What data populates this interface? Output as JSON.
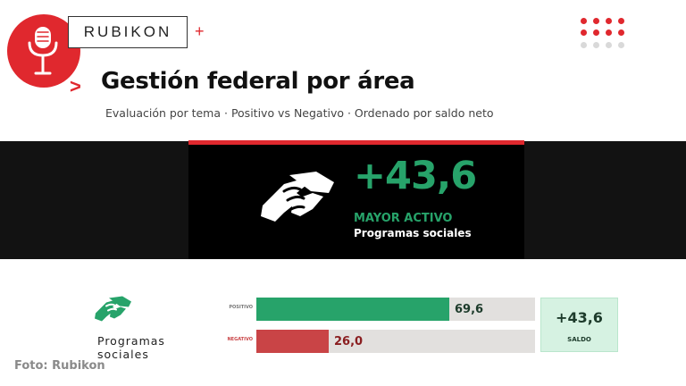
{
  "brand": {
    "name": "RUBIKON",
    "plus": "+",
    "logo_icon": "microphone-icon",
    "accent_color": "#e0282e"
  },
  "header": {
    "chevron": ">",
    "title": "Gestión federal por área",
    "subtitle": "Evaluación por tema · Positivo vs Negativo · Ordenado por saldo neto"
  },
  "hero": {
    "icon": "handshake-icon",
    "value": "+43,6",
    "label": "MAYOR ACTIVO",
    "category": "Programas sociales",
    "value_color": "#27a36a"
  },
  "rows": [
    {
      "category": "Programas sociales",
      "icon": "handshake-icon",
      "positive": {
        "tag": "POSITIVO",
        "value": 69.6,
        "display": "69,6",
        "color": "#27a36a"
      },
      "negative": {
        "tag": "NEGATIVO",
        "value": 26.0,
        "display": "26,0",
        "color": "#c94446"
      },
      "saldo": {
        "value": "+43,6",
        "label": "SALDO"
      }
    }
  ],
  "footer": {
    "credit": "Foto: Rubikon"
  }
}
